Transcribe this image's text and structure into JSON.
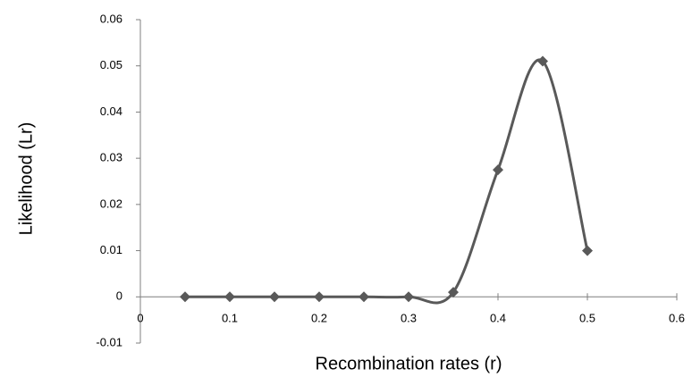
{
  "chart_data": {
    "type": "line",
    "x_label": "Recombination rates (r)",
    "y_label": "Likelihood (Lr)",
    "x": [
      0.05,
      0.1,
      0.15,
      0.2,
      0.25,
      0.3,
      0.35,
      0.4,
      0.45,
      0.5
    ],
    "series": [
      {
        "name": "Likelihood",
        "color": "#595959",
        "values": [
          0,
          0,
          0,
          0,
          0,
          0,
          0.001,
          0.0275,
          0.051,
          0.01
        ]
      }
    ],
    "xlim": [
      0,
      0.6
    ],
    "xticks": [
      0,
      0.1,
      0.2,
      0.3,
      0.4,
      0.5,
      0.6
    ],
    "ylim": [
      -0.01,
      0.06
    ],
    "yticks": [
      -0.01,
      0,
      0.01,
      0.02,
      0.03,
      0.04,
      0.05,
      0.06
    ],
    "smooth": true,
    "marker": "diamond"
  }
}
